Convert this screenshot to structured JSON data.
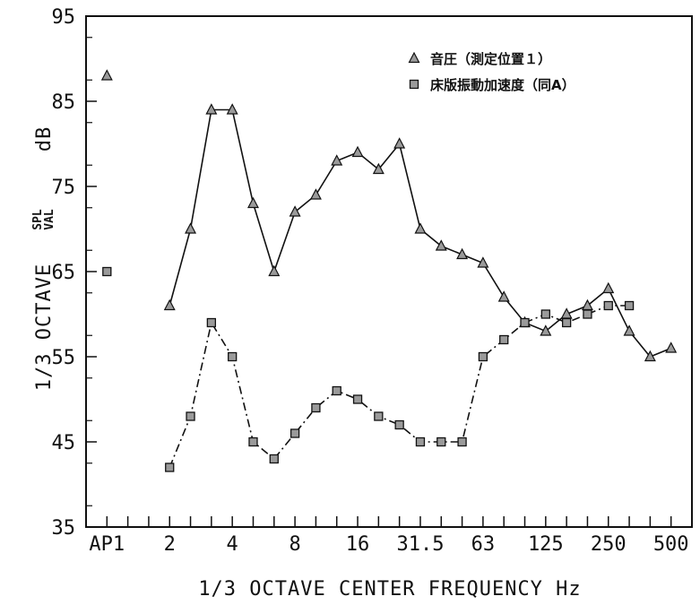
{
  "chart_data": {
    "type": "line",
    "title": "",
    "xlabel": "1/3 OCTAVE CENTER FREQUENCY Hz",
    "ylabel": {
      "prefix": "1/3 OCTAVE",
      "stack_top": "SPL",
      "stack_bottom": "VAL",
      "unit": "dB"
    },
    "ylim": [
      35,
      95
    ],
    "yticks": [
      35,
      45,
      55,
      65,
      75,
      85,
      95
    ],
    "x_tick_labels": [
      {
        "label": "AP1",
        "index": 0
      },
      {
        "label": "2",
        "index": 3
      },
      {
        "label": "4",
        "index": 6
      },
      {
        "label": "8",
        "index": 9
      },
      {
        "label": "16",
        "index": 12
      },
      {
        "label": "31.5",
        "index": 15
      },
      {
        "label": "63",
        "index": 18
      },
      {
        "label": "125",
        "index": 21
      },
      {
        "label": "250",
        "index": 24
      },
      {
        "label": "500",
        "index": 27
      }
    ],
    "x_index_range": [
      -1,
      28
    ],
    "grid": false,
    "legend_position": "top-right",
    "series": [
      {
        "name": "音圧（測定位置１）",
        "marker": "triangle",
        "line_style": "solid",
        "ap1_value": 88,
        "x": [
          3,
          4,
          5,
          6,
          7,
          8,
          9,
          10,
          11,
          12,
          13,
          14,
          15,
          16,
          17,
          18,
          19,
          20,
          21,
          22,
          23,
          24,
          25,
          26,
          27
        ],
        "values": [
          61,
          70,
          84,
          84,
          73,
          65,
          72,
          74,
          78,
          79,
          77,
          80,
          70,
          68,
          67,
          66,
          62,
          59,
          58,
          60,
          61,
          63,
          58,
          55,
          56
        ]
      },
      {
        "name": "床版振動加速度（同A）",
        "marker": "square",
        "line_style": "dash-dot",
        "ap1_value": 65,
        "x": [
          3,
          4,
          5,
          6,
          7,
          8,
          9,
          10,
          11,
          12,
          13,
          14,
          15,
          16,
          17,
          18,
          19,
          20,
          21,
          22,
          23,
          24,
          25
        ],
        "values": [
          42,
          48,
          59,
          55,
          45,
          43,
          46,
          49,
          51,
          50,
          48,
          47,
          45,
          45,
          45,
          55,
          57,
          59,
          60,
          59,
          60,
          61,
          61
        ]
      }
    ]
  }
}
